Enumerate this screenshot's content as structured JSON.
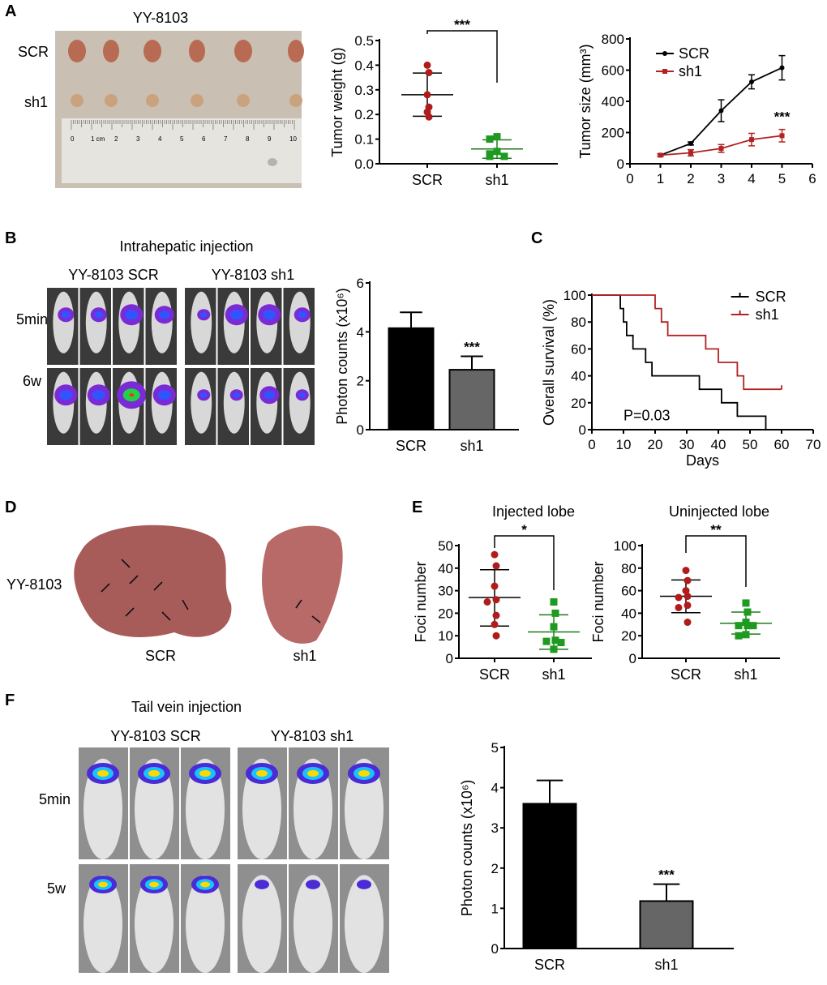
{
  "panels": {
    "A": {
      "letter": "A",
      "title": "YY-8103",
      "row_labels": [
        "SCR",
        "sh1"
      ],
      "ruler_text": "1 cm"
    },
    "B": {
      "letter": "B",
      "title": "Intrahepatic injection",
      "group_labels": [
        "YY-8103 SCR",
        "YY-8103 sh1"
      ],
      "row_labels": [
        "5min",
        "6w"
      ]
    },
    "C": {
      "letter": "C"
    },
    "D": {
      "letter": "D",
      "row_label": "YY-8103",
      "group_labels": [
        "SCR",
        "sh1"
      ]
    },
    "E": {
      "letter": "E"
    },
    "F": {
      "letter": "F",
      "title": "Tail vein injection",
      "group_labels": [
        "YY-8103 SCR",
        "YY-8103 sh1"
      ],
      "row_labels": [
        "5min",
        "5w"
      ]
    }
  },
  "colors": {
    "scr": "#000000",
    "sh1_line": "#b22222",
    "scr_points": "#b01c1c",
    "sh1_points": "#1e9a1e",
    "sh1_bar": "#666666"
  },
  "chart_data": [
    {
      "id": "A-weight",
      "type": "scatter",
      "ylabel": "Tumor weight (g)",
      "categories": [
        "SCR",
        "sh1"
      ],
      "ylim": [
        0,
        0.5
      ],
      "yticks": [
        "0.0",
        "0.1",
        "0.2",
        "0.3",
        "0.4",
        "0.5"
      ],
      "groups": [
        {
          "name": "SCR",
          "points": [
            0.4,
            0.37,
            0.28,
            0.23,
            0.21,
            0.19
          ],
          "mean": 0.28,
          "sd_low": 0.193,
          "sd_high": 0.368,
          "marker": "circle"
        },
        {
          "name": "sh1",
          "points": [
            0.11,
            0.1,
            0.05,
            0.04,
            0.03,
            0.03
          ],
          "mean": 0.06,
          "sd_low": 0.022,
          "sd_high": 0.097,
          "marker": "square"
        }
      ],
      "significance": "***"
    },
    {
      "id": "A-size",
      "type": "line",
      "ylabel": "Tumor size (mm³)",
      "xlim": [
        0,
        6
      ],
      "ylim": [
        0,
        800
      ],
      "xticks": [
        "0",
        "1",
        "2",
        "3",
        "4",
        "5",
        "6"
      ],
      "yticks": [
        "0",
        "200",
        "400",
        "600",
        "800"
      ],
      "legend": "top-left",
      "x": [
        1,
        2,
        3,
        4,
        5
      ],
      "series": [
        {
          "name": "SCR",
          "values": [
            55,
            130,
            340,
            525,
            615
          ],
          "errors": [
            8,
            10,
            70,
            45,
            78
          ]
        },
        {
          "name": "sh1",
          "values": [
            55,
            70,
            98,
            155,
            180
          ],
          "errors": [
            8,
            20,
            25,
            40,
            40
          ]
        }
      ],
      "annotation": "***"
    },
    {
      "id": "B-photon",
      "type": "bar",
      "ylabel": "Photon counts (x10⁶)",
      "categories": [
        "SCR",
        "sh1"
      ],
      "ylim": [
        0,
        6
      ],
      "yticks": [
        "0",
        "2",
        "4",
        "6"
      ],
      "values": [
        4.15,
        2.45
      ],
      "errors": [
        0.65,
        0.55
      ],
      "annotation": "***"
    },
    {
      "id": "C-survival",
      "type": "line",
      "subtype": "kaplan-meier",
      "ylabel": "Overall survival (%)",
      "xlabel": "Days",
      "xlim": [
        0,
        70
      ],
      "ylim": [
        0,
        100
      ],
      "xticks": [
        "0",
        "10",
        "20",
        "30",
        "40",
        "50",
        "60",
        "70"
      ],
      "yticks": [
        "0",
        "20",
        "40",
        "60",
        "80",
        "100"
      ],
      "legend": "top-right",
      "annotation": "P=0.03",
      "series": [
        {
          "name": "SCR",
          "steps": [
            [
              0,
              100
            ],
            [
              9,
              90
            ],
            [
              10,
              80
            ],
            [
              11,
              70
            ],
            [
              13,
              60
            ],
            [
              17,
              50
            ],
            [
              19,
              40
            ],
            [
              34,
              30
            ],
            [
              41,
              20
            ],
            [
              46,
              10
            ],
            [
              55,
              0
            ]
          ],
          "end": 55
        },
        {
          "name": "sh1",
          "steps": [
            [
              0,
              100
            ],
            [
              20,
              90
            ],
            [
              22,
              80
            ],
            [
              24,
              70
            ],
            [
              36,
              60
            ],
            [
              40,
              50
            ],
            [
              46,
              40
            ],
            [
              48,
              30
            ]
          ],
          "end": 60
        }
      ]
    },
    {
      "id": "E-injected",
      "type": "scatter",
      "title": "Injected lobe",
      "ylabel": "Foci number",
      "categories": [
        "SCR",
        "sh1"
      ],
      "ylim": [
        0,
        50
      ],
      "yticks": [
        "0",
        "10",
        "20",
        "30",
        "40",
        "50"
      ],
      "groups": [
        {
          "name": "SCR",
          "points": [
            46,
            41,
            32,
            26,
            25,
            19,
            15,
            10
          ],
          "mean": 27,
          "sd_low": 14.3,
          "sd_high": 39.3,
          "marker": "circle"
        },
        {
          "name": "sh1",
          "points": [
            25,
            20,
            14,
            8,
            7.5,
            7,
            4
          ],
          "mean": 11.7,
          "sd_low": 4,
          "sd_high": 19.3,
          "marker": "square"
        }
      ],
      "significance": "*"
    },
    {
      "id": "E-uninjected",
      "type": "scatter",
      "title": "Uninjected lobe",
      "ylabel": "Foci number",
      "categories": [
        "SCR",
        "sh1"
      ],
      "ylim": [
        0,
        100
      ],
      "yticks": [
        "0",
        "20",
        "40",
        "60",
        "80",
        "100"
      ],
      "groups": [
        {
          "name": "SCR",
          "points": [
            78,
            69,
            60,
            55,
            54,
            47,
            45,
            32
          ],
          "mean": 55,
          "sd_low": 40.5,
          "sd_high": 69.5,
          "marker": "circle"
        },
        {
          "name": "sh1",
          "points": [
            49,
            41,
            32,
            29,
            29,
            29,
            21,
            20
          ],
          "mean": 31,
          "sd_low": 21.5,
          "sd_high": 41,
          "marker": "square"
        }
      ],
      "significance": "**"
    },
    {
      "id": "F-photon",
      "type": "bar",
      "ylabel": "Photon counts (x10⁶)",
      "categories": [
        "SCR",
        "sh1"
      ],
      "ylim": [
        0,
        5
      ],
      "yticks": [
        "0",
        "1",
        "2",
        "3",
        "4",
        "5"
      ],
      "values": [
        3.6,
        1.18
      ],
      "errors": [
        0.58,
        0.42
      ],
      "annotation": "***"
    }
  ]
}
